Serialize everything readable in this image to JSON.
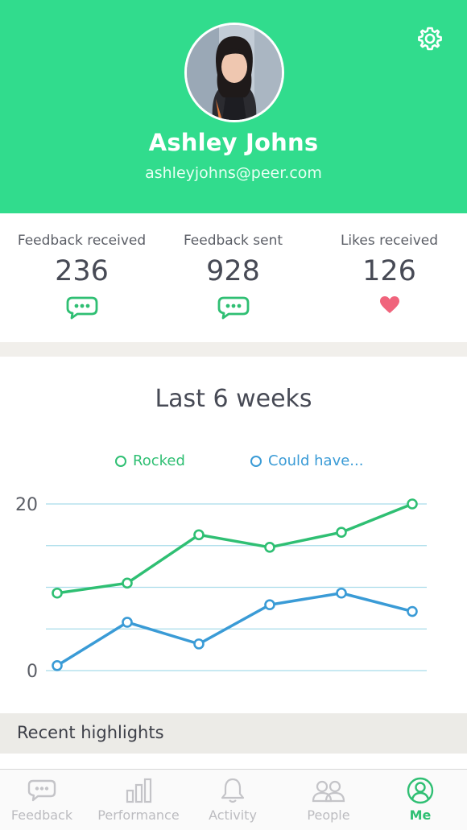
{
  "profile": {
    "name": "Ashley Johns",
    "email": "ashleyjohns@peer.com"
  },
  "stats": [
    {
      "label": "Feedback received",
      "value": "236",
      "icon": "chat-bubble-icon"
    },
    {
      "label": "Feedback sent",
      "value": "928",
      "icon": "chat-bubble-icon"
    },
    {
      "label": "Likes received",
      "value": "126",
      "icon": "heart-icon"
    }
  ],
  "colors": {
    "brand": "#31dc8d",
    "rocked": "#2fbf73",
    "could_have": "#3a9bd6",
    "heart": "#f0647c"
  },
  "chart_data": {
    "type": "line",
    "title": "Last 6 weeks",
    "x": [
      1,
      2,
      3,
      4,
      5,
      6
    ],
    "ylim": [
      0,
      20
    ],
    "yticks": [
      "0",
      "20"
    ],
    "grid": true,
    "legend": "top",
    "series": [
      {
        "name": "Rocked",
        "values": [
          9.3,
          10.5,
          16.3,
          14.8,
          16.6,
          20.0
        ]
      },
      {
        "name": "Could have...",
        "values": [
          0.6,
          5.8,
          3.2,
          7.9,
          9.3,
          7.1
        ]
      }
    ]
  },
  "recent": {
    "title": "Recent highlights"
  },
  "tabs": [
    {
      "label": "Feedback",
      "icon": "chat-bubble-icon",
      "active": false
    },
    {
      "label": "Performance",
      "icon": "bar-chart-icon",
      "active": false
    },
    {
      "label": "Activity",
      "icon": "bell-icon",
      "active": false
    },
    {
      "label": "People",
      "icon": "people-icon",
      "active": false
    },
    {
      "label": "Me",
      "icon": "profile-icon",
      "active": true
    }
  ]
}
